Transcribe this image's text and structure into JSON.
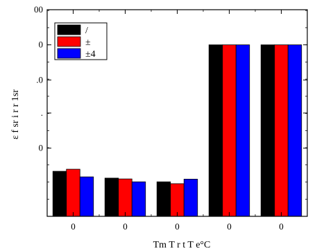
{
  "chart_data": {
    "type": "bar",
    "xlabel": "Tm T r t T e°C",
    "ylabel": "ε f sr i r r 1sr",
    "categories": [
      "0",
      "0",
      "0",
      "0",
      "0"
    ],
    "ylim": [
      0,
      100
    ],
    "y_ticks": [
      {
        "value": 100,
        "label": "00"
      },
      {
        "value": 83,
        "label": "0"
      },
      {
        "value": 66,
        "label": ".0"
      },
      {
        "value": 50,
        "label": "."
      },
      {
        "value": 33,
        "label": "0"
      }
    ],
    "series": [
      {
        "name": "/",
        "color": "#000000",
        "values": [
          21.8,
          18.5,
          16.7,
          83,
          83
        ]
      },
      {
        "name": "±",
        "color": "#ff0000",
        "values": [
          22.8,
          18.1,
          15.8,
          83,
          83
        ]
      },
      {
        "name": "±4",
        "color": "#0000ff",
        "values": [
          19.1,
          16.7,
          18.0,
          83,
          83
        ]
      }
    ],
    "legend": "top-left",
    "grid": false
  }
}
